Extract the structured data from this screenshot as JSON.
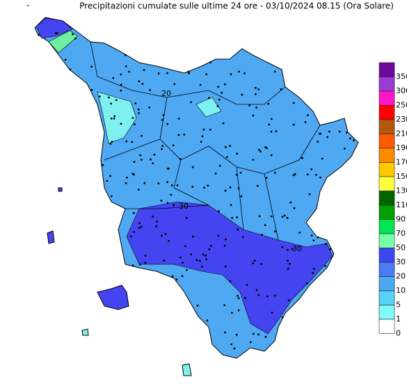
{
  "header": {
    "marker": "-",
    "title": "Precipitazioni cumulate sulle ultime 24 ore - 03/10/2024 08.15 (Ora Solare)"
  },
  "contour_labels": [
    "20",
    "30",
    "30"
  ],
  "legend": [
    {
      "label": 350,
      "color": "#6a0a9e"
    },
    {
      "label": 300,
      "color": "#9b3ad6"
    },
    {
      "label": 250,
      "color": "#ff14c8"
    },
    {
      "label": 230,
      "color": "#ff0000"
    },
    {
      "label": 210,
      "color": "#b4580a"
    },
    {
      "label": 190,
      "color": "#ff5a00"
    },
    {
      "label": 170,
      "color": "#ff8c00"
    },
    {
      "label": 150,
      "color": "#ffc800"
    },
    {
      "label": 130,
      "color": "#ffff3c"
    },
    {
      "label": 110,
      "color": "#006400"
    },
    {
      "label": 90,
      "color": "#00a000"
    },
    {
      "label": 70,
      "color": "#00e650"
    },
    {
      "label": 50,
      "color": "#78ffaa"
    },
    {
      "label": 30,
      "color": "#3c46f5"
    },
    {
      "label": 20,
      "color": "#4a7cf5"
    },
    {
      "label": 10,
      "color": "#4aa8f5"
    },
    {
      "label": 5,
      "color": "#5ad2f5"
    },
    {
      "label": 1,
      "color": "#82fafa"
    },
    {
      "label": 0,
      "color": "#ffffff"
    }
  ]
}
